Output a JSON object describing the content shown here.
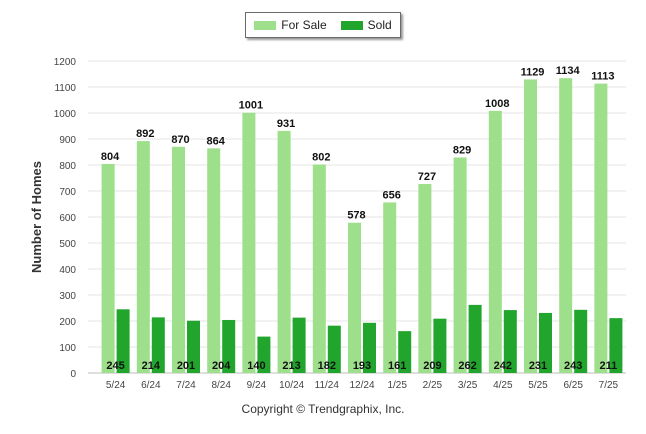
{
  "chart_data": {
    "type": "bar",
    "ylabel": "Number of Homes",
    "xlabel": "",
    "title": "",
    "ylim": [
      0,
      1200
    ],
    "yticks": [
      0,
      100,
      200,
      300,
      400,
      500,
      600,
      700,
      800,
      900,
      1000,
      1100,
      1200
    ],
    "grid": true,
    "legend_position": "top-center",
    "categories": [
      "5/24",
      "6/24",
      "7/24",
      "8/24",
      "9/24",
      "10/24",
      "11/24",
      "12/24",
      "1/25",
      "2/25",
      "3/25",
      "4/25",
      "5/25",
      "6/25",
      "7/25"
    ],
    "series": [
      {
        "name": "For Sale",
        "color": "#9ddf8a",
        "values": [
          804,
          892,
          870,
          864,
          1001,
          931,
          802,
          578,
          656,
          727,
          829,
          1008,
          1129,
          1134,
          1113
        ]
      },
      {
        "name": "Sold",
        "color": "#22a52c",
        "values": [
          245,
          214,
          201,
          204,
          140,
          213,
          182,
          193,
          161,
          209,
          262,
          242,
          231,
          243,
          211
        ]
      }
    ]
  },
  "footer": {
    "copyright": "Copyright © Trendgraphix, Inc."
  }
}
